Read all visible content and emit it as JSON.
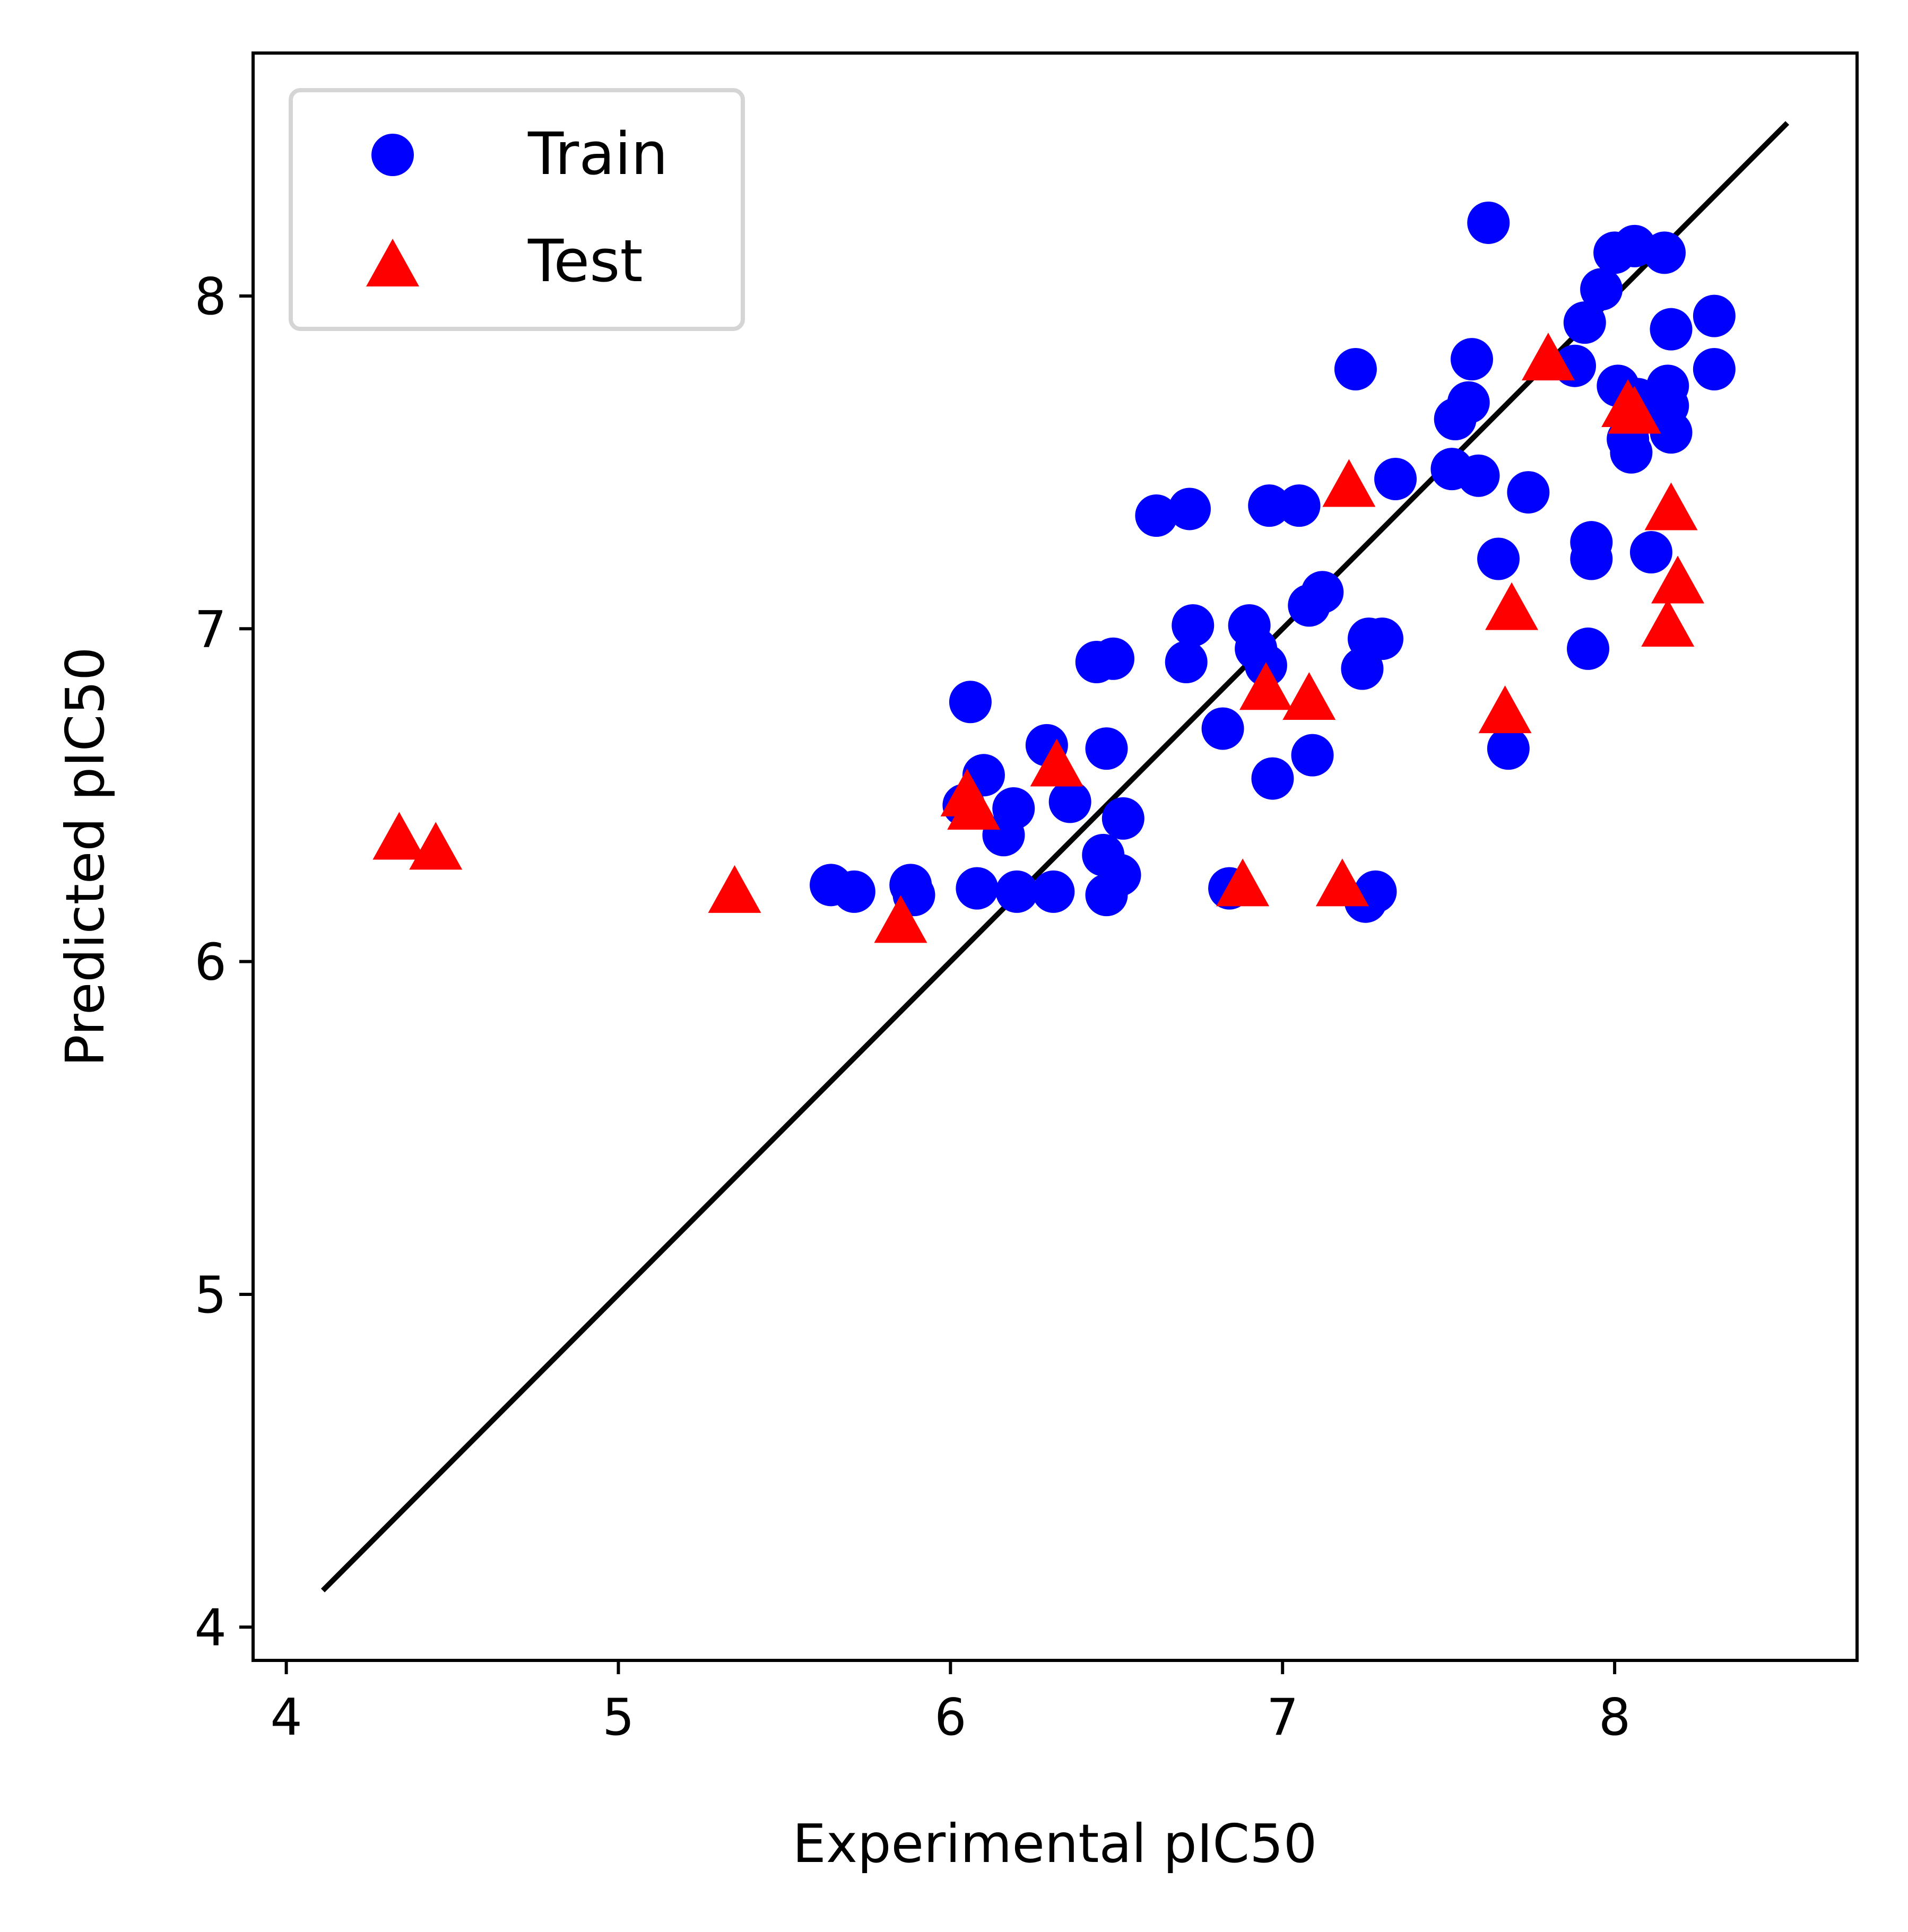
{
  "chart_data": {
    "type": "scatter",
    "xlabel": "Experimental pIC50",
    "ylabel": "Predicted pIC50",
    "xlim": [
      3.9,
      8.73
    ],
    "ylim": [
      3.9,
      8.73
    ],
    "xticks": [
      4,
      5,
      6,
      7,
      8
    ],
    "yticks": [
      4,
      5,
      6,
      7,
      8
    ],
    "grid": false,
    "legend_position": "top-left",
    "reference_line": {
      "x": [
        4.11,
        8.52
      ],
      "y": [
        4.11,
        8.52
      ],
      "color": "#000000"
    },
    "series": [
      {
        "name": "Train",
        "marker": "circle",
        "color": "#0000ff",
        "points": [
          [
            5.64,
            6.23
          ],
          [
            5.71,
            6.21
          ],
          [
            5.88,
            6.23
          ],
          [
            5.89,
            6.2
          ],
          [
            6.04,
            6.47
          ],
          [
            6.06,
            6.78
          ],
          [
            6.08,
            6.22
          ],
          [
            6.1,
            6.56
          ],
          [
            6.16,
            6.38
          ],
          [
            6.19,
            6.46
          ],
          [
            6.2,
            6.21
          ],
          [
            6.29,
            6.65
          ],
          [
            6.31,
            6.21
          ],
          [
            6.36,
            6.48
          ],
          [
            6.44,
            6.9
          ],
          [
            6.46,
            6.32
          ],
          [
            6.47,
            6.2
          ],
          [
            6.47,
            6.64
          ],
          [
            6.49,
            6.91
          ],
          [
            6.51,
            6.26
          ],
          [
            6.52,
            6.43
          ],
          [
            6.62,
            7.34
          ],
          [
            6.71,
            6.9
          ],
          [
            6.72,
            7.36
          ],
          [
            6.73,
            7.01
          ],
          [
            6.82,
            6.7
          ],
          [
            6.84,
            6.22
          ],
          [
            6.9,
            7.01
          ],
          [
            6.92,
            6.94
          ],
          [
            6.95,
            6.89
          ],
          [
            6.96,
            7.37
          ],
          [
            6.97,
            6.55
          ],
          [
            7.05,
            7.37
          ],
          [
            7.08,
            7.07
          ],
          [
            7.09,
            6.62
          ],
          [
            7.12,
            7.11
          ],
          [
            7.22,
            7.78
          ],
          [
            7.24,
            6.88
          ],
          [
            7.25,
            6.18
          ],
          [
            7.26,
            6.97
          ],
          [
            7.28,
            6.21
          ],
          [
            7.3,
            6.97
          ],
          [
            7.34,
            7.45
          ],
          [
            7.51,
            7.48
          ],
          [
            7.52,
            7.63
          ],
          [
            7.56,
            7.68
          ],
          [
            7.57,
            7.81
          ],
          [
            7.59,
            7.46
          ],
          [
            7.62,
            8.22
          ],
          [
            7.65,
            7.21
          ],
          [
            7.68,
            6.64
          ],
          [
            7.74,
            7.41
          ],
          [
            7.88,
            7.79
          ],
          [
            7.91,
            7.92
          ],
          [
            7.92,
            6.94
          ],
          [
            7.93,
            7.26
          ],
          [
            7.93,
            7.21
          ],
          [
            7.96,
            8.02
          ],
          [
            8.0,
            8.13
          ],
          [
            8.01,
            7.73
          ],
          [
            8.04,
            7.57
          ],
          [
            8.05,
            7.53
          ],
          [
            8.06,
            8.15
          ],
          [
            8.07,
            7.69
          ],
          [
            8.11,
            7.23
          ],
          [
            8.15,
            8.13
          ],
          [
            8.16,
            7.67
          ],
          [
            8.16,
            7.73
          ],
          [
            8.17,
            7.9
          ],
          [
            8.17,
            7.59
          ],
          [
            8.3,
            7.94
          ],
          [
            8.3,
            7.78
          ]
        ]
      },
      {
        "name": "Test",
        "marker": "triangle",
        "color": "#ff0000",
        "points": [
          [
            4.34,
            6.37
          ],
          [
            4.45,
            6.34
          ],
          [
            5.35,
            6.21
          ],
          [
            5.85,
            6.12
          ],
          [
            6.05,
            6.5
          ],
          [
            6.07,
            6.46
          ],
          [
            6.32,
            6.59
          ],
          [
            6.88,
            6.23
          ],
          [
            6.95,
            6.82
          ],
          [
            7.08,
            6.79
          ],
          [
            7.18,
            6.23
          ],
          [
            7.2,
            7.43
          ],
          [
            7.67,
            6.75
          ],
          [
            7.69,
            7.06
          ],
          [
            7.8,
            7.81
          ],
          [
            8.04,
            7.67
          ],
          [
            8.06,
            7.65
          ],
          [
            8.16,
            7.01
          ],
          [
            8.17,
            7.36
          ],
          [
            8.19,
            7.14
          ]
        ]
      }
    ]
  }
}
